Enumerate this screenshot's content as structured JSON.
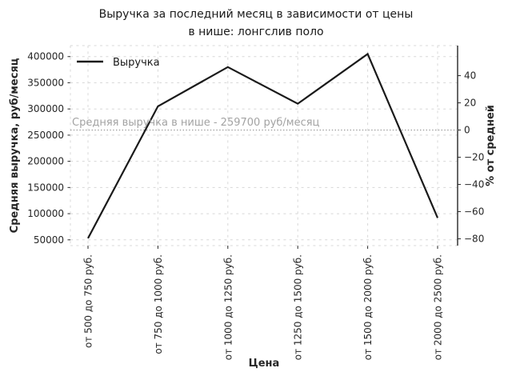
{
  "title": {
    "line1": "Выручка за последний месяц в зависимости от цены",
    "line2": "в нише: лонгслив поло"
  },
  "legend": {
    "label": "Выручка",
    "position": "upper left"
  },
  "annotation": {
    "text": "Средняя выручка в нише - 259700 руб/месяц"
  },
  "axis_labels": {
    "x": "Цена",
    "y_left": "Средняя выручка, руб/месяц",
    "y_right": "% от средней"
  },
  "colors": {
    "line": "#1a1a1a",
    "axis": "#262626",
    "tick_text": "#262626",
    "grid": "#d8d8d8",
    "mean_line": "#9f9f9f",
    "annotation_text": "#a3a3a3",
    "background": "#ffffff"
  },
  "chart_data": {
    "type": "line",
    "title": "Выручка за последний месяц в зависимости от цены в нише: лонгслив поло",
    "categories": [
      "от 500 до 750 руб.",
      "от 750 до 1000 руб.",
      "от 1000 до 1250 руб.",
      "от 1250 до 1500 руб.",
      "от 1500 до 2000 руб.",
      "от 2000 до 2500 руб."
    ],
    "series": [
      {
        "name": "Выручка",
        "values": [
          53000,
          305000,
          380000,
          310000,
          405000,
          92000
        ]
      }
    ],
    "percent_of_mean_approx": [
      -80,
      17,
      46,
      19,
      56,
      -65
    ],
    "xlabel": "Цена",
    "ylabel_left": "Средняя выручка, руб/месяц",
    "ylabel_right": "% от средней",
    "yticks_left": [
      50000,
      100000,
      150000,
      200000,
      250000,
      300000,
      350000,
      400000
    ],
    "yticks_right": [
      40,
      20,
      0,
      -20,
      -40,
      -60,
      -80
    ],
    "ylim_left": [
      39000,
      421000
    ],
    "mean_line": {
      "value": 259700,
      "label": "Средняя выручка в нише - 259700 руб/месяц"
    },
    "grid": true,
    "grid_style": "dashed",
    "legend_position": "upper left",
    "line_color": "#1a1a1a"
  }
}
